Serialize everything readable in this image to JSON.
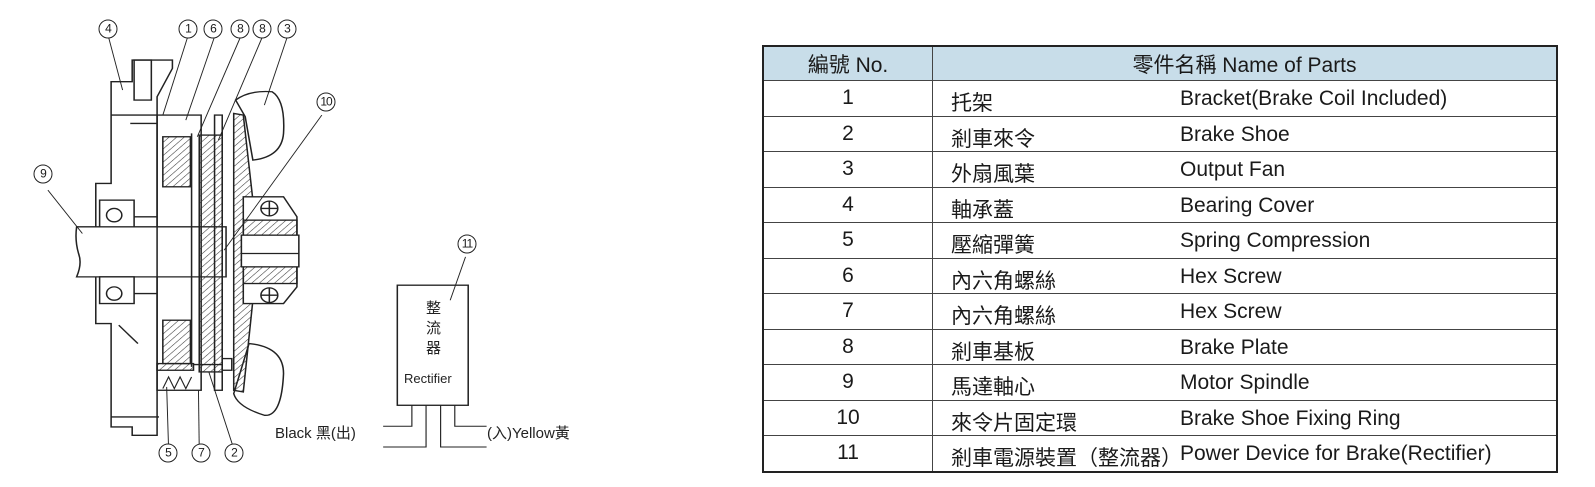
{
  "diagram": {
    "callouts": [
      "4",
      "1",
      "6",
      "8",
      "8",
      "3",
      "10",
      "9",
      "11",
      "5",
      "7",
      "2"
    ],
    "rectifier": {
      "chinese": [
        "整",
        "流",
        "器"
      ],
      "english": "Rectifier"
    },
    "wires": {
      "left": "Black 黑(出)",
      "right": "(入)Yellow黃"
    }
  },
  "table": {
    "header_no": "編號 No.",
    "header_name": "零件名稱 Name of Parts",
    "header_color": "#c8dde9",
    "rows": [
      {
        "no": "1",
        "zh": "托架",
        "en": "Bracket(Brake Coil Included)"
      },
      {
        "no": "2",
        "zh": "剎車來令",
        "en": "Brake Shoe"
      },
      {
        "no": "3",
        "zh": "外扇風葉",
        "en": "Output Fan"
      },
      {
        "no": "4",
        "zh": "軸承蓋",
        "en": "Bearing Cover"
      },
      {
        "no": "5",
        "zh": "壓縮彈簧",
        "en": "Spring Compression"
      },
      {
        "no": "6",
        "zh": "內六角螺絲",
        "en": "Hex Screw"
      },
      {
        "no": "7",
        "zh": "內六角螺絲",
        "en": "Hex Screw"
      },
      {
        "no": "8",
        "zh": "剎車基板",
        "en": "Brake Plate"
      },
      {
        "no": "9",
        "zh": "馬達軸心",
        "en": "Motor Spindle"
      },
      {
        "no": "10",
        "zh": "來令片固定環",
        "en": "Brake Shoe Fixing Ring"
      },
      {
        "no": "11",
        "zh": "剎車電源裝置（整流器）",
        "en": "Power Device for Brake(Rectifier)"
      }
    ]
  }
}
